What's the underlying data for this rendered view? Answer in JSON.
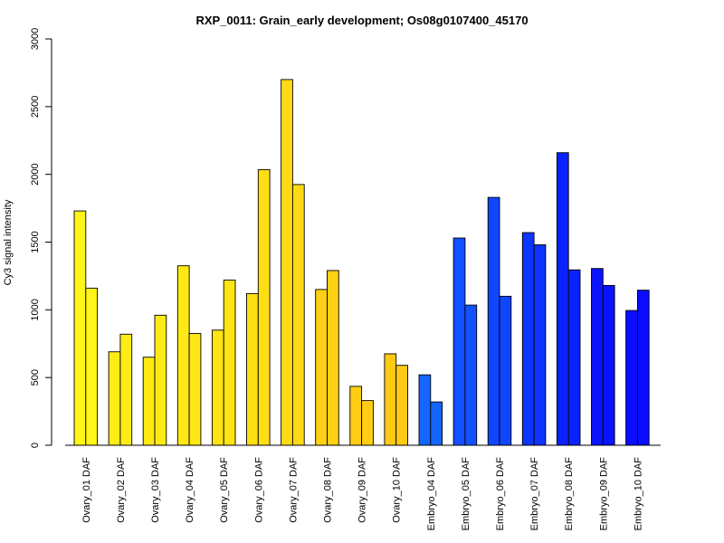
{
  "chart_data": {
    "type": "bar",
    "title": "RXP_0011: Grain_early development; Os08g0107400_45170",
    "xlabel": "",
    "ylabel": "Cy3 signal intensity",
    "ylim": [
      0,
      3000
    ],
    "yticks": [
      0,
      500,
      1000,
      1500,
      2000,
      2500,
      3000
    ],
    "grid": false,
    "legend": "none",
    "categories": [
      "Ovary_01 DAF",
      "Ovary_02 DAF",
      "Ovary_03 DAF",
      "Ovary_04 DAF",
      "Ovary_05 DAF",
      "Ovary_06 DAF",
      "Ovary_07 DAF",
      "Ovary_08 DAF",
      "Ovary_09 DAF",
      "Ovary_10 DAF",
      "Embryo_04 DAF",
      "Embryo_05 DAF",
      "Embryo_06 DAF",
      "Embryo_07 DAF",
      "Embryo_08 DAF",
      "Embryo_09 DAF",
      "Embryo_10 DAF"
    ],
    "series": [
      {
        "values": [
          1730,
          690,
          650,
          1325,
          850,
          1120,
          2700,
          1150,
          435,
          675,
          520,
          1530,
          1830,
          1570,
          2160,
          1305,
          995
        ]
      },
      {
        "values": [
          1160,
          820,
          960,
          825,
          1220,
          2035,
          1925,
          1290,
          330,
          590,
          320,
          1035,
          1100,
          1480,
          1295,
          1180,
          1145
        ]
      }
    ],
    "category_colors": [
      "#FFF516",
      "#FFEB16",
      "#FFE914",
      "#FFE814",
      "#FFE414",
      "#FFDE14",
      "#FFDA14",
      "#FFD114",
      "#FFCE14",
      "#FFC914",
      "#1566FF",
      "#1350FF",
      "#1146FF",
      "#0C35FF",
      "#0A22FF",
      "#0A14FF",
      "#0A0DFF"
    ]
  }
}
